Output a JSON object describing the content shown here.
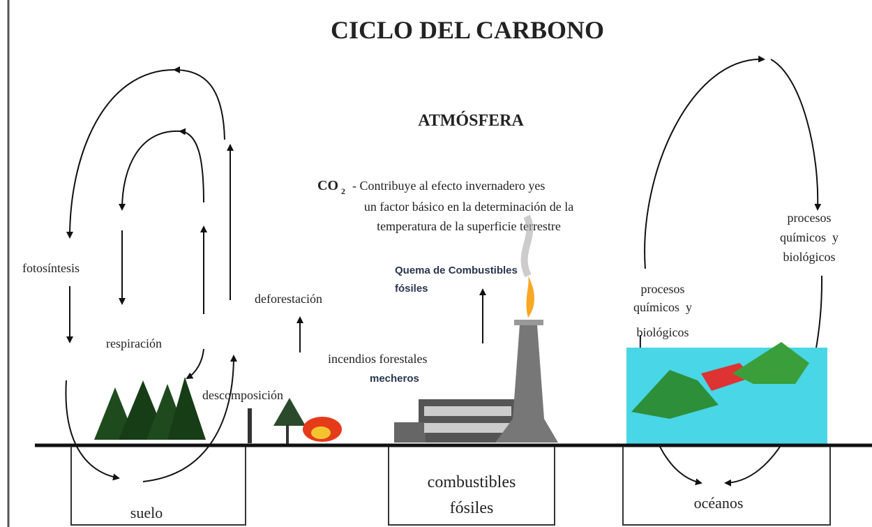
{
  "title": "CICLO DEL CARBONO",
  "atmosphere": "ATMÓSFERA",
  "co2": {
    "formula": "CO",
    "subscript": "2",
    "lines": [
      "- Contribuye al efecto invernadero yes",
      "un factor básico en la determinación de la",
      "temperatura de la superficie terrestre"
    ]
  },
  "labels": {
    "photosynthesis": "fotosíntesis",
    "respiration": "respiración",
    "deforestation": "deforestación",
    "decomposition": "descomposición",
    "forest_fires": "incendios forestales",
    "lighters": "mecheros",
    "fossil_burning": [
      "Quema de Combustibles",
      "fósiles"
    ],
    "processes_left": [
      "procesos",
      "químicos  y",
      "biológicos"
    ],
    "processes_right": [
      "procesos",
      "químicos  y",
      "biológicos"
    ]
  },
  "reservoirs": {
    "soil": "suelo",
    "fossil_fuels": [
      "combustibles",
      "fósiles"
    ],
    "oceans": "océanos"
  }
}
